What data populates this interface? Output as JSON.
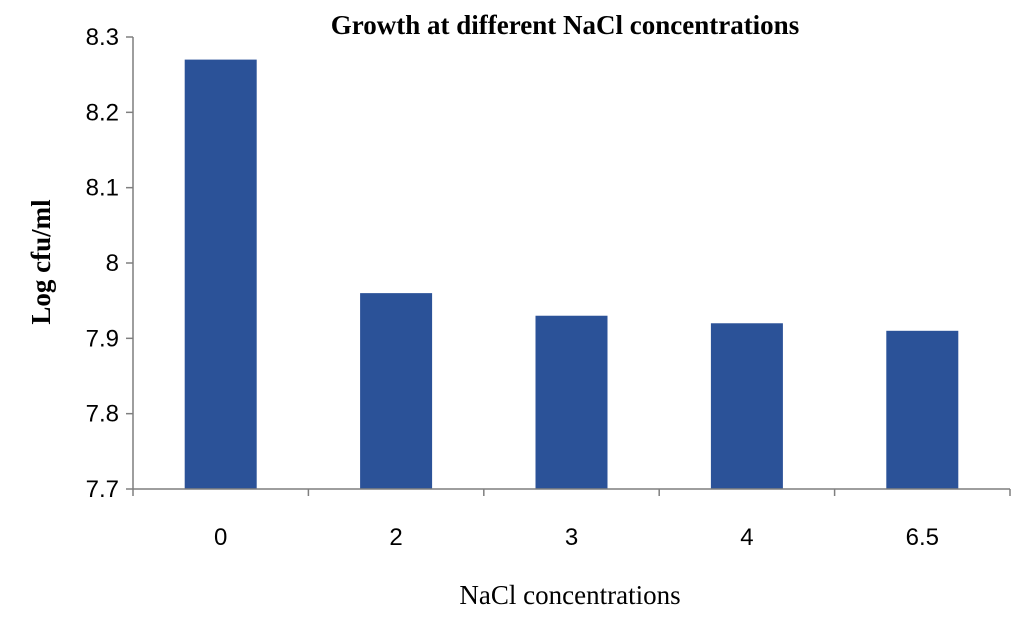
{
  "chart_data": {
    "type": "bar",
    "title": "Growth at different NaCl concentrations",
    "xlabel": "NaCl concentrations",
    "ylabel": "Log cfu/ml",
    "categories": [
      "0",
      "2",
      "3",
      "4",
      "6.5"
    ],
    "values": [
      8.27,
      7.96,
      7.93,
      7.92,
      7.91
    ],
    "ylim": [
      7.7,
      8.3
    ],
    "yticks": [
      7.7,
      7.8,
      7.9,
      8.0,
      8.1,
      8.2,
      8.3
    ],
    "ytick_labels": [
      "7.7",
      "7.8",
      "7.9",
      "8",
      "8.1",
      "8.2",
      "8.3"
    ],
    "grid": false,
    "legend": "none",
    "bar_color": "#2B5298"
  }
}
